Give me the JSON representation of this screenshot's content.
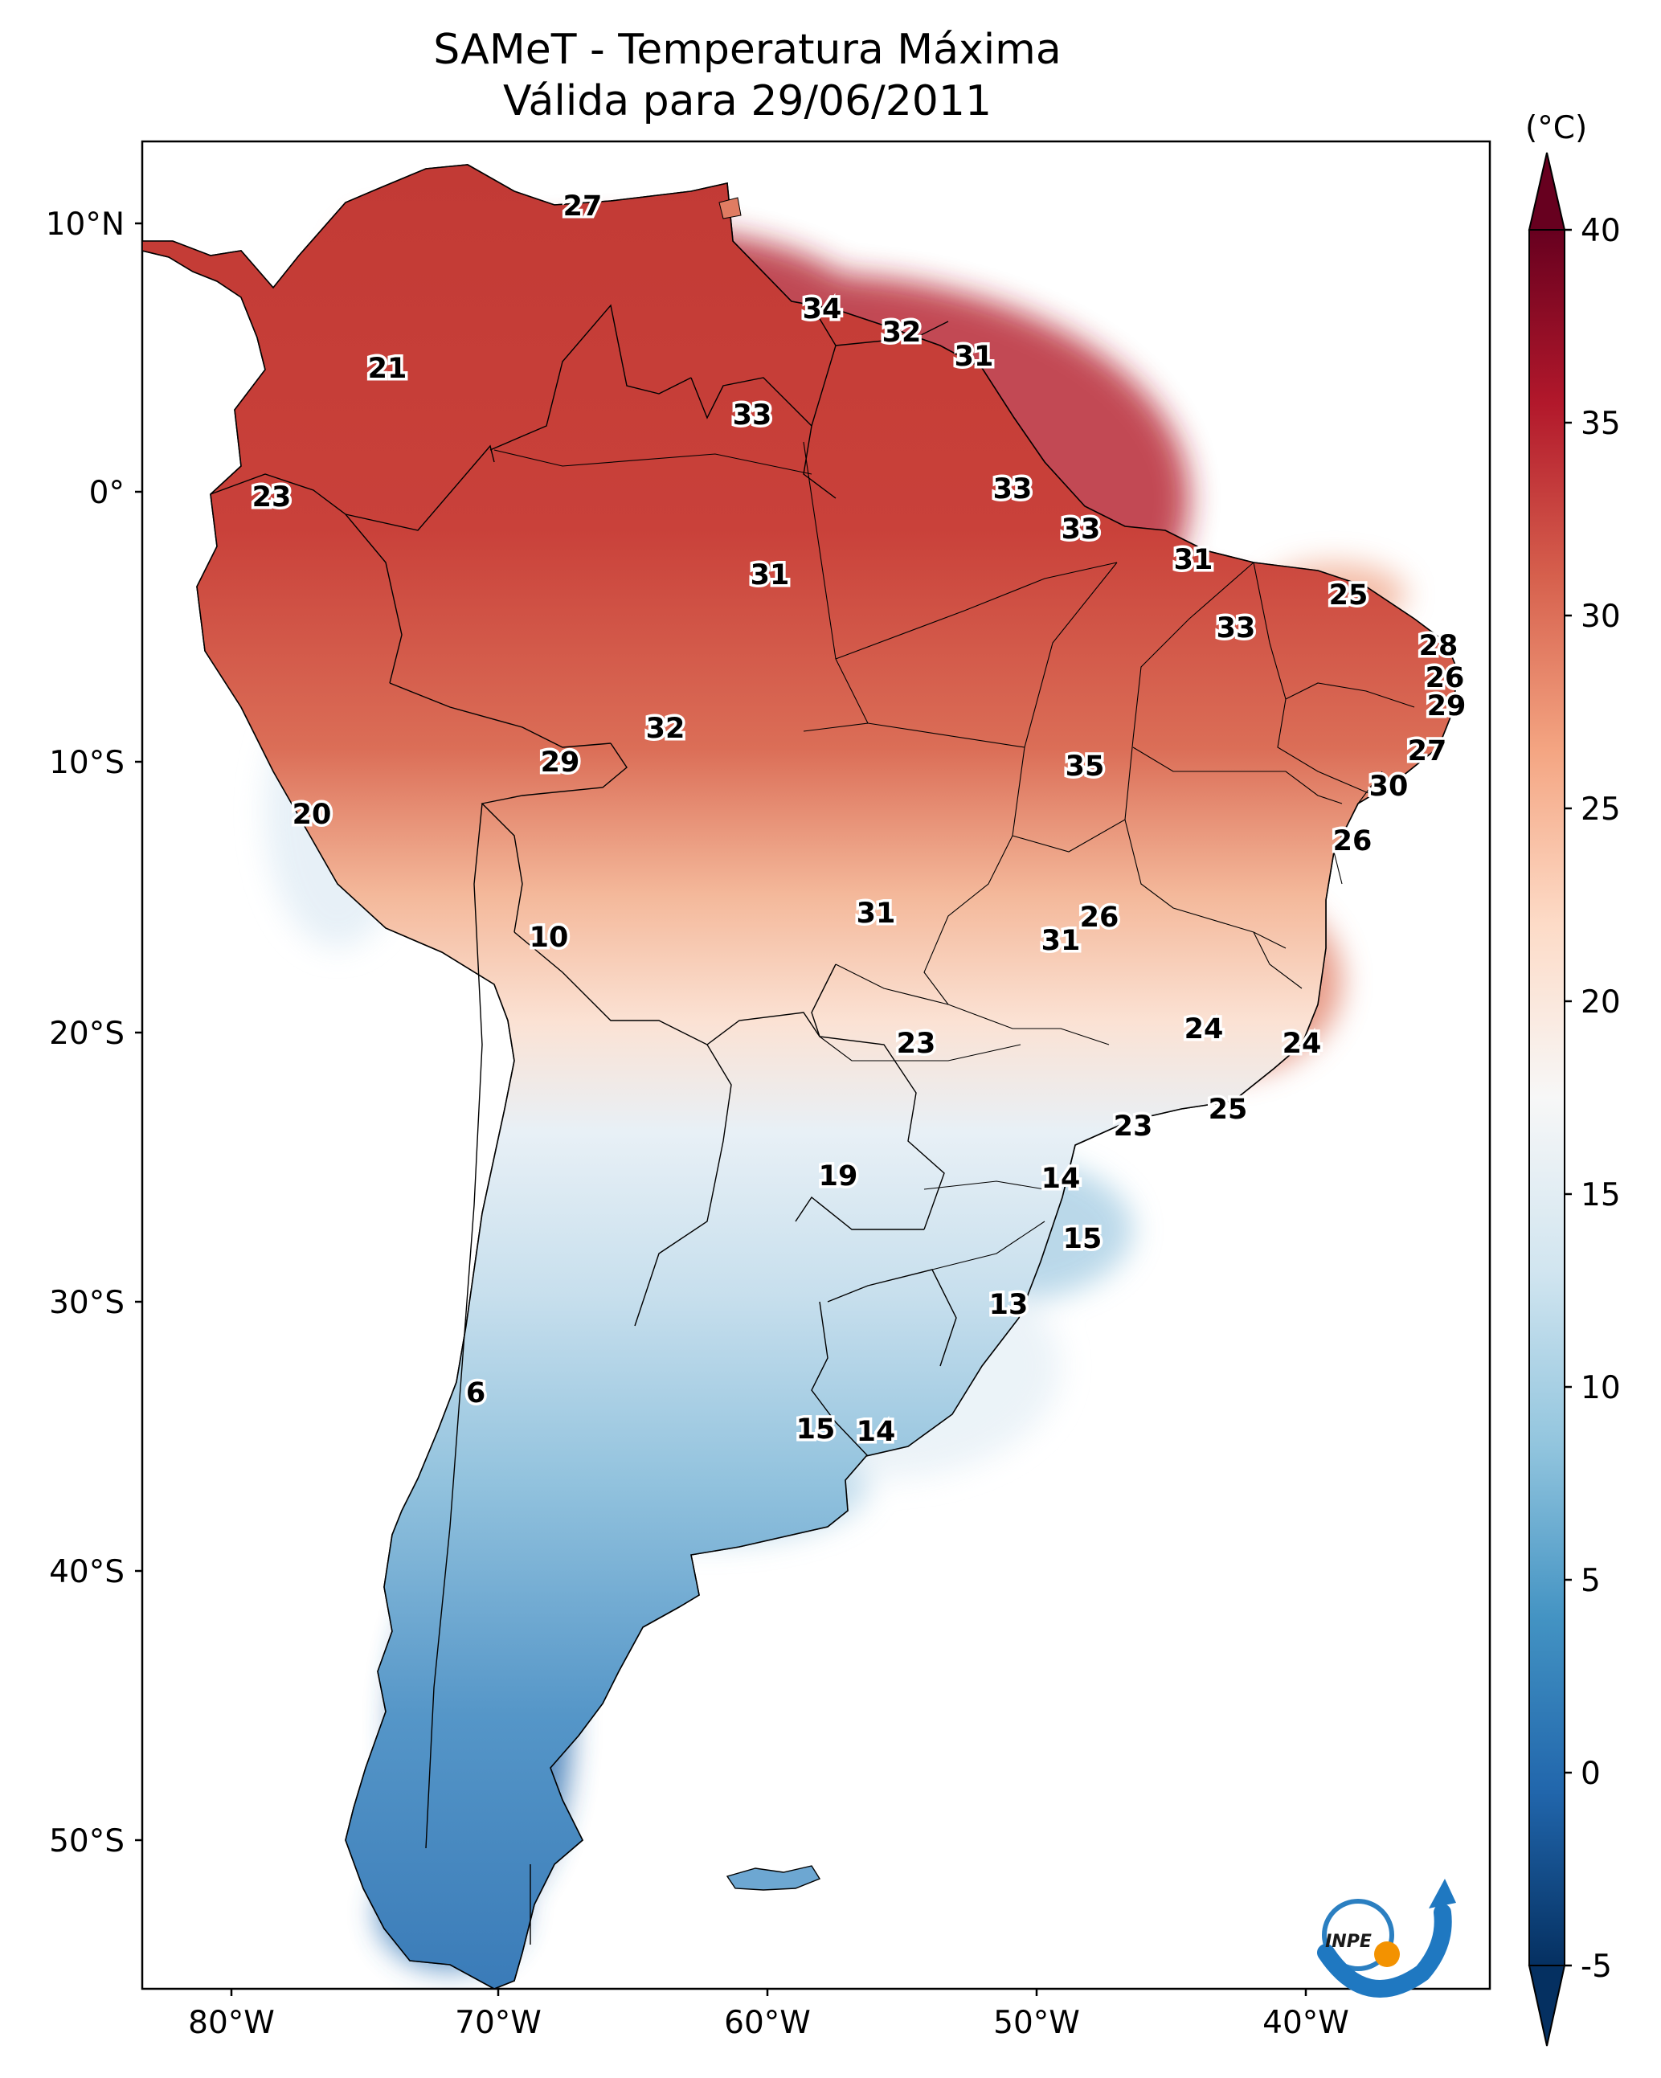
{
  "title_line1": "SAMeT - Temperatura Máxima",
  "title_line2": "Válida para 29/06/2011",
  "lat_ticks": [
    "10°N",
    "0°",
    "10°S",
    "20°S",
    "30°S",
    "40°S",
    "50°S"
  ],
  "lon_ticks": [
    "80°W",
    "70°W",
    "60°W",
    "50°W",
    "40°W"
  ],
  "colorbar": {
    "unit_label": "(°C)",
    "range": [
      -5,
      40
    ],
    "ticks": [
      "40",
      "35",
      "30",
      "25",
      "20",
      "15",
      "10",
      "5",
      "0",
      "-5"
    ],
    "extend": "both",
    "colormap": [
      "#053061",
      "#2166ac",
      "#4393c3",
      "#92c5de",
      "#d1e5f0",
      "#f7f7f7",
      "#fddbc7",
      "#f4a582",
      "#d6604d",
      "#b2182b",
      "#67001f"
    ]
  },
  "contour_labels": [
    "27",
    "34",
    "32",
    "31",
    "21",
    "33",
    "23",
    "33",
    "33",
    "31",
    "31",
    "25",
    "33",
    "28",
    "26",
    "29",
    "32",
    "29",
    "27",
    "35",
    "30",
    "20",
    "26",
    "10",
    "31",
    "26",
    "31",
    "24",
    "24",
    "23",
    "25",
    "23",
    "19",
    "14",
    "15",
    "13",
    "6",
    "15",
    "14"
  ],
  "logo": {
    "icon": "inpe-logo",
    "text": "INPE"
  },
  "accent_colors": {
    "hot": "#b2182b",
    "cold": "#2166ac",
    "neutral": "#f7f7f7"
  }
}
